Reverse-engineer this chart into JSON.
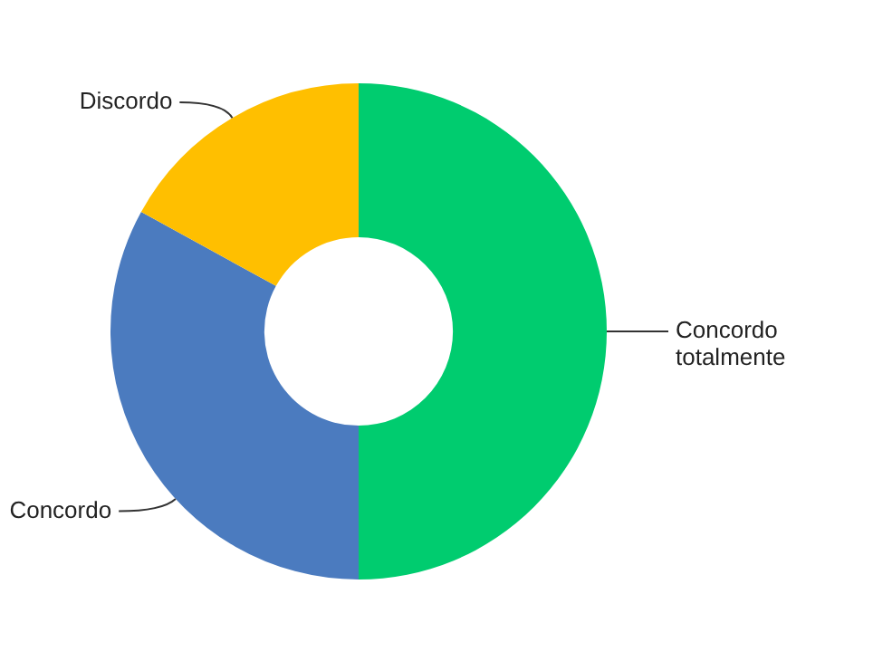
{
  "chart_data": {
    "type": "donut",
    "categories": [
      "Concordo totalmente",
      "Concordo",
      "Discordo"
    ],
    "values": [
      50,
      33,
      17
    ],
    "colors": [
      "#00cc6f",
      "#4b7bbf",
      "#ffbf00"
    ],
    "legend": false
  }
}
